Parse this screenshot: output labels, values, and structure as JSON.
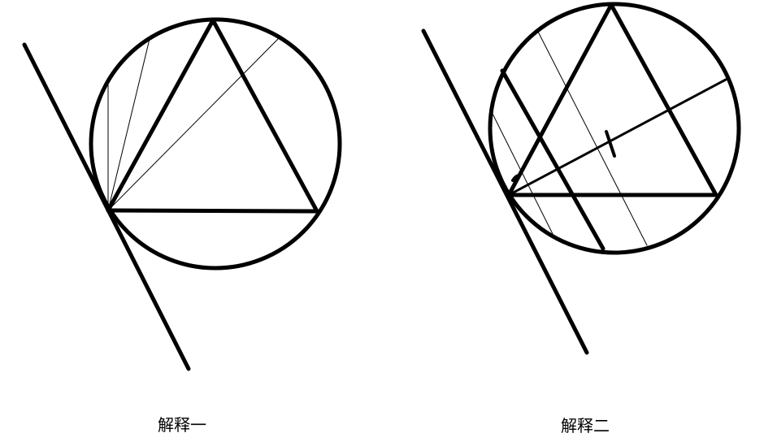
{
  "panels": [
    {
      "caption": "解释一"
    },
    {
      "caption": "解释二"
    }
  ],
  "colors": {
    "ink": "#000000",
    "background": "#ffffff"
  }
}
